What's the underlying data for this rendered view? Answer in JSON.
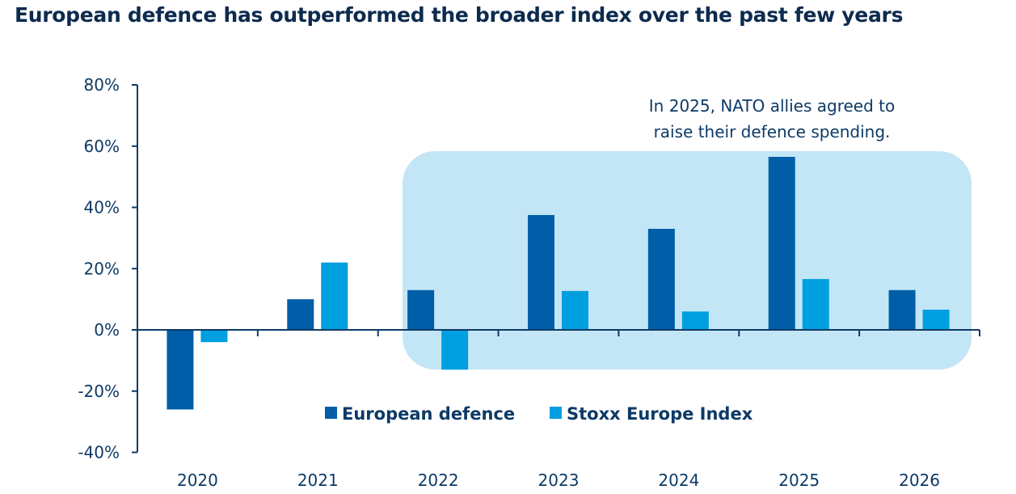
{
  "chart_data": {
    "type": "bar",
    "title": "European defence has outperformed the broader index over the past few years",
    "categories": [
      "2020",
      "2021",
      "2022",
      "2023",
      "2024",
      "2025",
      "2026"
    ],
    "series": [
      {
        "name": "European defence",
        "values": [
          -26,
          10,
          13,
          37.5,
          33,
          56.5,
          13
        ],
        "color": "#005ea8"
      },
      {
        "name": "Stoxx Europe Index",
        "values": [
          -4,
          22,
          -13,
          12.7,
          6,
          16.6,
          6.6
        ],
        "color": "#009fe0"
      }
    ],
    "ylim": [
      -40,
      80
    ],
    "yticks": [
      "80%",
      "60%",
      "40%",
      "20%",
      "0%",
      "-20%",
      "-40%"
    ],
    "ytick_values": [
      80,
      60,
      40,
      20,
      0,
      -20,
      -40
    ],
    "xlabel": "",
    "ylabel": "",
    "grid": false,
    "legend": "bottom-center",
    "annotation": {
      "lines": [
        "In 2025, NATO allies agreed to",
        "raise their defence spending."
      ],
      "highlight_from": "2022",
      "highlight_to": "2026",
      "highlight_color": "#c3e6f6"
    }
  }
}
